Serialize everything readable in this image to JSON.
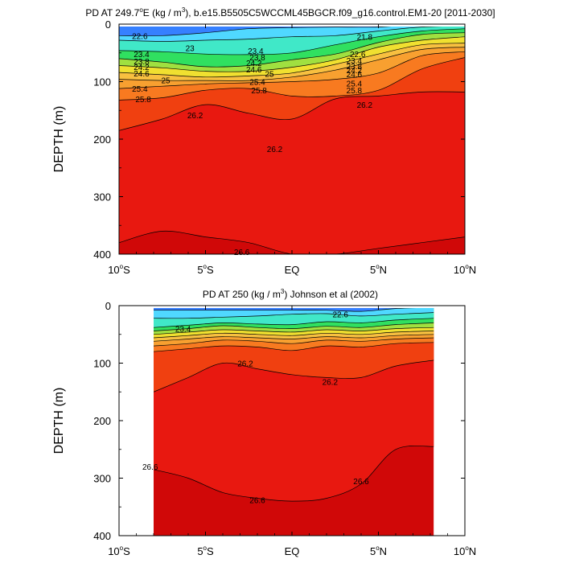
{
  "chart_data": [
    {
      "type": "heatmap",
      "title": "PD AT 249.7°E (kg / m³), b.e15.B5505C5WCCML45BGCR.f09_g16.control.EM1-20 [2011-2030]",
      "title_parts": {
        "pre": "PD AT 249.7",
        "deg_sup": "o",
        "mid": "E (kg / m",
        "cube_sup": "3",
        "post": "), b.e15.B5505C5WCCML45BGCR.f09_g16.control.EM1-20 [2011-2030]"
      },
      "xlabel": "",
      "ylabel": "DEPTH (m)",
      "xlim": [
        -10,
        10
      ],
      "ylim": [
        400,
        0
      ],
      "xticks": [
        {
          "v": -10,
          "num": "10",
          "deg": "o",
          "hemi": "S"
        },
        {
          "v": -5,
          "num": "5",
          "deg": "o",
          "hemi": "S"
        },
        {
          "v": 0,
          "num": "EQ",
          "deg": "",
          "hemi": ""
        },
        {
          "v": 5,
          "num": "5",
          "deg": "o",
          "hemi": "N"
        },
        {
          "v": 10,
          "num": "10",
          "deg": "o",
          "hemi": "N"
        }
      ],
      "yticks": [
        "0",
        "100",
        "200",
        "300",
        "400"
      ],
      "data_extent": [
        -10,
        10
      ],
      "contours": [
        {
          "level": 22.6,
          "depth": [
            20,
            20,
            15,
            8,
            6,
            5,
            5,
            0,
            0
          ]
        },
        {
          "level": 23.0,
          "depth": [
            28,
            30,
            28,
            26,
            22,
            20,
            12,
            5,
            3
          ]
        },
        {
          "level": 23.4,
          "depth": [
            46,
            48,
            52,
            53,
            50,
            36,
            22,
            12,
            8
          ]
        },
        {
          "level": 23.8,
          "depth": [
            60,
            66,
            74,
            72,
            62,
            52,
            32,
            18,
            15
          ]
        },
        {
          "level": 24.2,
          "depth": [
            72,
            76,
            82,
            82,
            75,
            62,
            40,
            28,
            22
          ]
        },
        {
          "level": 24.6,
          "depth": [
            84,
            88,
            92,
            90,
            85,
            70,
            52,
            36,
            33
          ]
        },
        {
          "level": 25.0,
          "depth": [
            96,
            98,
            98,
            98,
            92,
            80,
            62,
            44,
            40
          ]
        },
        {
          "level": 25.4,
          "depth": [
            112,
            108,
            104,
            102,
            100,
            96,
            85,
            55,
            48
          ]
        },
        {
          "level": 25.8,
          "depth": [
            132,
            128,
            115,
            112,
            125,
            125,
            115,
            78,
            58
          ]
        },
        {
          "level": 26.2,
          "depth": [
            185,
            165,
            140,
            155,
            165,
            130,
            125,
            118,
            118
          ]
        },
        {
          "level": 26.6,
          "depth": [
            380,
            360,
            370,
            380,
            400,
            400,
            390,
            380,
            370
          ]
        }
      ],
      "contours_x": [
        -10,
        -7.5,
        -5,
        -2.5,
        0,
        2.5,
        5,
        7.5,
        10
      ],
      "contour_labels": [
        {
          "text": "22.6",
          "x": -8.8,
          "d": 20
        },
        {
          "text": "23",
          "x": -5.9,
          "d": 41
        },
        {
          "text": "23.4",
          "x": -8.7,
          "d": 52
        },
        {
          "text": "23.8",
          "x": -8.7,
          "d": 64
        },
        {
          "text": "24.2",
          "x": -8.7,
          "d": 74
        },
        {
          "text": "24.6",
          "x": -8.7,
          "d": 85
        },
        {
          "text": "25",
          "x": -7.3,
          "d": 97
        },
        {
          "text": "25.4",
          "x": -8.8,
          "d": 112
        },
        {
          "text": "25.8",
          "x": -8.6,
          "d": 130
        },
        {
          "text": "26.2",
          "x": -5.6,
          "d": 158
        },
        {
          "text": "23.4",
          "x": -2.1,
          "d": 46
        },
        {
          "text": "23.8",
          "x": -2.0,
          "d": 57
        },
        {
          "text": "24.2",
          "x": -2.2,
          "d": 67
        },
        {
          "text": "24.6",
          "x": -2.2,
          "d": 78
        },
        {
          "text": "25",
          "x": -1.3,
          "d": 86
        },
        {
          "text": "25.4",
          "x": -2.0,
          "d": 100
        },
        {
          "text": "25.8",
          "x": -1.9,
          "d": 115
        },
        {
          "text": "26.2",
          "x": -1.0,
          "d": 217
        },
        {
          "text": "21.8",
          "x": 4.2,
          "d": 22
        },
        {
          "text": "22.6",
          "x": 3.8,
          "d": 52
        },
        {
          "text": "23.4",
          "x": 3.6,
          "d": 63
        },
        {
          "text": "23.8",
          "x": 3.6,
          "d": 73
        },
        {
          "text": "24.2",
          "x": 3.6,
          "d": 80
        },
        {
          "text": "24.6",
          "x": 3.6,
          "d": 87
        },
        {
          "text": "25.4",
          "x": 3.6,
          "d": 103
        },
        {
          "text": "25.8",
          "x": 3.6,
          "d": 115
        },
        {
          "text": "26.2",
          "x": 4.2,
          "d": 140
        },
        {
          "text": "26.6",
          "x": -2.9,
          "d": 396
        }
      ]
    },
    {
      "type": "heatmap",
      "title": "PD AT 250 (kg / m³) Johnson et al (2002)",
      "title_parts": {
        "pre": "PD AT 250 (kg / m",
        "deg_sup": "",
        "mid": "",
        "cube_sup": "3",
        "post": ") Johnson et al (2002)"
      },
      "xlabel": "",
      "ylabel": "DEPTH (m)",
      "xlim": [
        -10,
        10
      ],
      "ylim": [
        400,
        0
      ],
      "xticks": [
        {
          "v": -10,
          "num": "10",
          "deg": "o",
          "hemi": "S"
        },
        {
          "v": -5,
          "num": "5",
          "deg": "o",
          "hemi": "S"
        },
        {
          "v": 0,
          "num": "EQ",
          "deg": "",
          "hemi": ""
        },
        {
          "v": 5,
          "num": "5",
          "deg": "o",
          "hemi": "N"
        },
        {
          "v": 10,
          "num": "10",
          "deg": "o",
          "hemi": "N"
        }
      ],
      "yticks": [
        "0",
        "100",
        "200",
        "300",
        "400"
      ],
      "data_extent": [
        -8,
        8.2
      ],
      "contours": [
        {
          "level": 22.6,
          "depth": [
            8,
            8,
            8,
            8,
            8,
            8,
            10,
            5,
            3
          ]
        },
        {
          "level": 23.0,
          "depth": [
            22,
            22,
            20,
            18,
            15,
            14,
            18,
            15,
            12
          ]
        },
        {
          "level": 23.4,
          "depth": [
            38,
            34,
            30,
            32,
            33,
            28,
            30,
            25,
            22
          ]
        },
        {
          "level": 23.8,
          "depth": [
            44,
            40,
            35,
            38,
            40,
            36,
            38,
            33,
            30
          ]
        },
        {
          "level": 24.2,
          "depth": [
            50,
            46,
            42,
            44,
            46,
            42,
            44,
            40,
            38
          ]
        },
        {
          "level": 24.6,
          "depth": [
            56,
            52,
            48,
            50,
            52,
            48,
            50,
            46,
            44
          ]
        },
        {
          "level": 25.0,
          "depth": [
            62,
            58,
            54,
            56,
            58,
            54,
            56,
            52,
            50
          ]
        },
        {
          "level": 25.4,
          "depth": [
            70,
            66,
            60,
            62,
            66,
            60,
            62,
            58,
            56
          ]
        },
        {
          "level": 25.8,
          "depth": [
            80,
            75,
            70,
            72,
            78,
            70,
            72,
            66,
            64
          ]
        },
        {
          "level": 26.2,
          "depth": [
            150,
            125,
            100,
            110,
            120,
            125,
            125,
            105,
            95
          ]
        },
        {
          "level": 26.6,
          "depth": [
            285,
            300,
            325,
            335,
            340,
            335,
            310,
            250,
            245
          ]
        }
      ],
      "contours_x": [
        -8,
        -6,
        -4,
        -2,
        0,
        2,
        4,
        6,
        8.2
      ],
      "contour_labels": [
        {
          "text": "23.4",
          "x": -6.3,
          "d": 40
        },
        {
          "text": "22.6",
          "x": 2.8,
          "d": 15
        },
        {
          "text": "26.2",
          "x": -2.7,
          "d": 100
        },
        {
          "text": "26.2",
          "x": 2.2,
          "d": 132
        },
        {
          "text": "26.6",
          "x": -8.2,
          "d": 280
        },
        {
          "text": "26.6",
          "x": -2.0,
          "d": 338
        },
        {
          "text": "26.6",
          "x": 4.0,
          "d": 305
        }
      ]
    }
  ]
}
